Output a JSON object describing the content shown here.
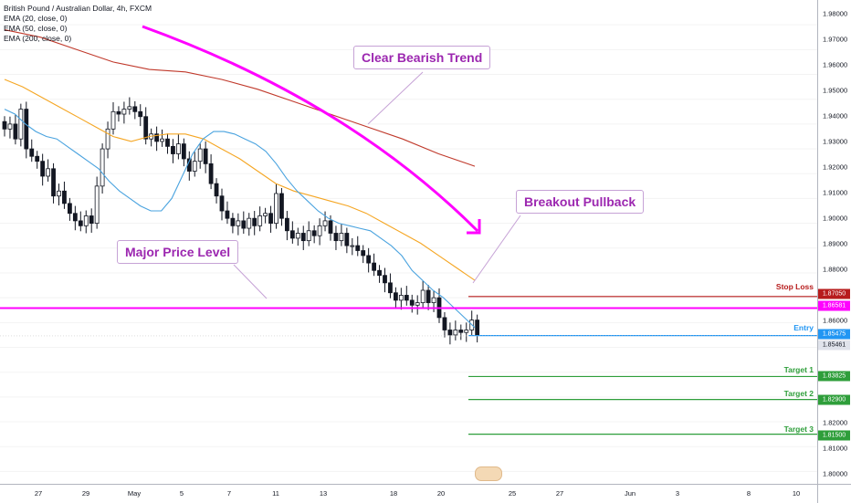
{
  "legend": {
    "title": "British Pound / Australian Dollar, 4h, FXCM",
    "ema20": "EMA (20, close, 0)",
    "ema50": "EMA (50, close, 0)",
    "ema200": "EMA (200, close, 0)"
  },
  "callouts": {
    "trend": "Clear Bearish Trend",
    "pullback": "Breakout Pullback",
    "level": "Major Price Level"
  },
  "levels": {
    "stop_loss": {
      "label": "Stop Loss",
      "price": "1.87050",
      "color": "#b71c1c"
    },
    "major": {
      "price": "1.86581",
      "color": "#ff00ff"
    },
    "entry": {
      "label": "Entry",
      "price": "1.85475",
      "color": "#2196f3"
    },
    "last": {
      "price": "1.85461",
      "color": "#e0e3eb"
    },
    "target1": {
      "label": "Target 1",
      "price": "1.83825",
      "color": "#2e9e3a"
    },
    "target2": {
      "label": "Target 2",
      "price": "1.82900",
      "color": "#2e9e3a"
    },
    "target3": {
      "label": "Target 3",
      "price": "1.81500",
      "color": "#2e9e3a"
    }
  },
  "price_ticks": [
    "1.98000",
    "1.97000",
    "1.96000",
    "1.95000",
    "1.94000",
    "1.93000",
    "1.92000",
    "1.91000",
    "1.90000",
    "1.89000",
    "1.88000",
    "1.86000",
    "1.82000",
    "1.81000",
    "1.80000"
  ],
  "time_ticks": [
    "27",
    "29",
    "May",
    "5",
    "7",
    "11",
    "13",
    "18",
    "20",
    "25",
    "27",
    "Jun",
    "3",
    "8",
    "10"
  ],
  "colors": {
    "ema20": "#4aa3df",
    "ema50": "#f5a623",
    "ema200": "#c0392b",
    "bull": "#ffffff",
    "bear": "#131722",
    "arrow": "#ff00ff"
  },
  "chart_data": {
    "type": "candlestick",
    "title": "British Pound / Australian Dollar, 4h, FXCM",
    "price_range": [
      1.795,
      1.99
    ],
    "close_series": [
      1.938,
      1.94,
      1.934,
      1.946,
      1.93,
      1.927,
      1.925,
      1.919,
      1.922,
      1.911,
      1.913,
      1.908,
      1.904,
      1.901,
      1.899,
      1.903,
      1.9,
      1.915,
      1.93,
      1.938,
      1.945,
      1.944,
      1.946,
      1.947,
      1.945,
      1.943,
      1.934,
      1.936,
      1.933,
      1.934,
      1.931,
      1.928,
      1.932,
      1.926,
      1.921,
      1.925,
      1.93,
      1.924,
      1.916,
      1.911,
      1.905,
      1.902,
      1.899,
      1.901,
      1.898,
      1.902,
      1.899,
      1.903,
      1.904,
      1.9,
      1.912,
      1.902,
      1.897,
      1.894,
      1.896,
      1.893,
      1.897,
      1.895,
      1.899,
      1.901,
      1.896,
      1.893,
      1.896,
      1.891,
      1.891,
      1.889,
      1.887,
      1.884,
      1.881,
      1.879,
      1.876,
      1.872,
      1.869,
      1.871,
      1.869,
      1.867,
      1.868,
      1.873,
      1.868,
      1.87,
      1.862,
      1.857,
      1.855,
      1.857,
      1.856,
      1.857,
      1.861,
      1.855
    ],
    "ema20": [
      1.946,
      1.944,
      1.94,
      1.937,
      1.935,
      1.934,
      1.931,
      1.928,
      1.925,
      1.922,
      1.917,
      1.913,
      1.91,
      1.907,
      1.905,
      1.905,
      1.91,
      1.919,
      1.928,
      1.934,
      1.937,
      1.937,
      1.936,
      1.934,
      1.932,
      1.929,
      1.924,
      1.918,
      1.913,
      1.909,
      1.905,
      1.902,
      1.9,
      1.899,
      1.898,
      1.897,
      1.894,
      1.891,
      1.887,
      1.881,
      1.877,
      1.873,
      1.87,
      1.866,
      1.862,
      1.858
    ],
    "ema50": [
      1.958,
      1.955,
      1.951,
      1.947,
      1.943,
      1.939,
      1.935,
      1.933,
      1.935,
      1.936,
      1.936,
      1.934,
      1.93,
      1.926,
      1.921,
      1.916,
      1.913,
      1.911,
      1.909,
      1.907,
      1.904,
      1.9,
      1.896,
      1.892,
      1.887,
      1.882,
      1.877
    ],
    "ema200": [
      1.978,
      1.975,
      1.97,
      1.965,
      1.962,
      1.961,
      1.958,
      1.954,
      1.949,
      1.944,
      1.939,
      1.934,
      1.928,
      1.923
    ]
  }
}
